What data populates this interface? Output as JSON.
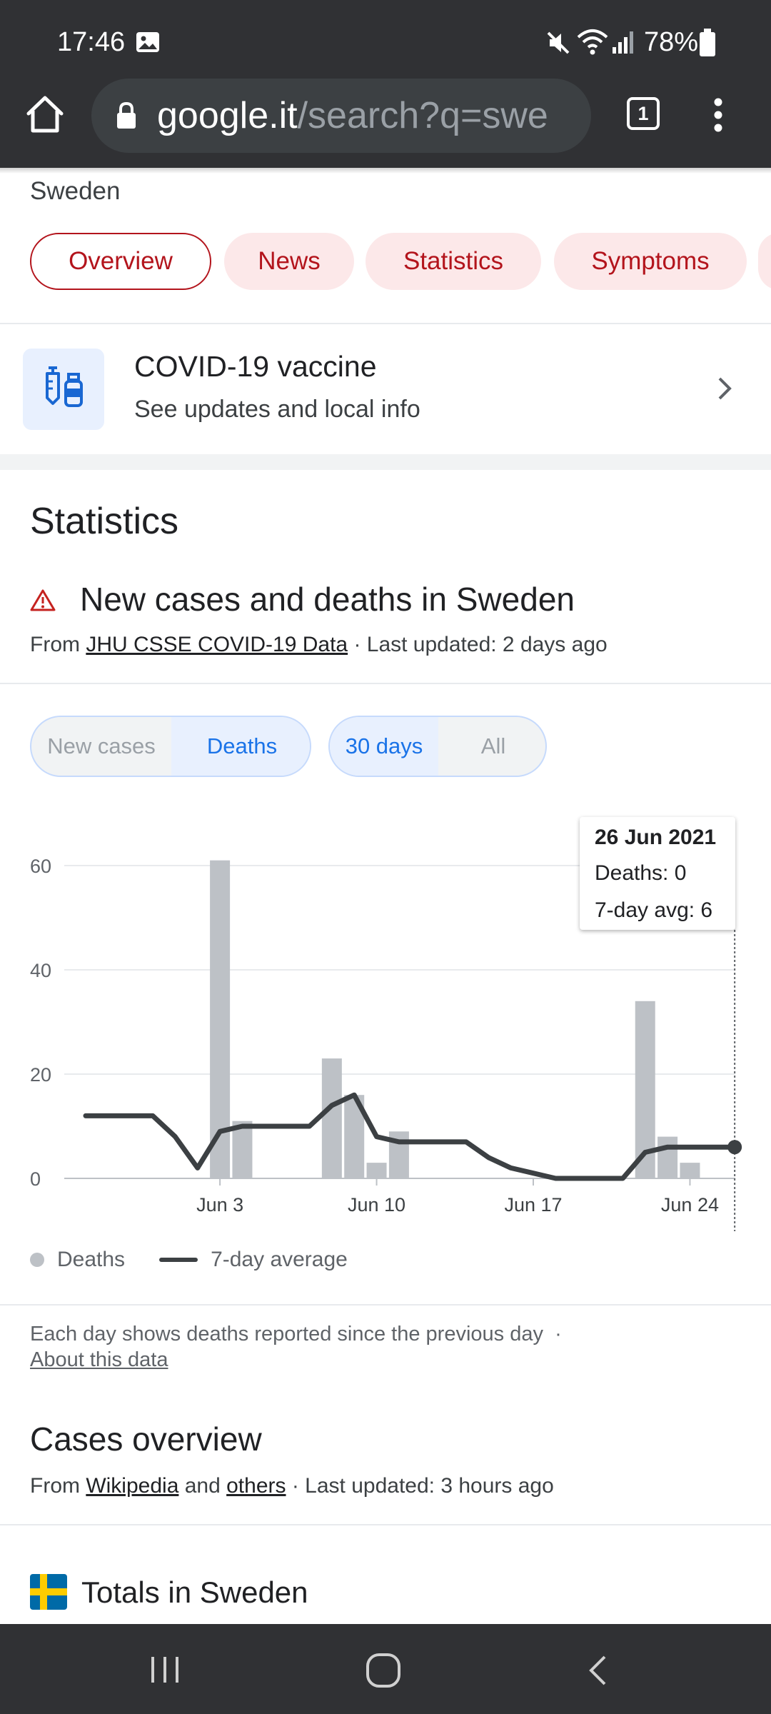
{
  "status_bar": {
    "time": "17:46",
    "battery": "78%"
  },
  "browser": {
    "url_host": "google.it",
    "url_path": "/search?q=swe",
    "tab_count": "1"
  },
  "search": {
    "country": "Sweden",
    "chips": [
      {
        "label": "Overview",
        "active": true
      },
      {
        "label": "News",
        "active": false
      },
      {
        "label": "Statistics",
        "active": false
      },
      {
        "label": "Symptoms",
        "active": false
      }
    ]
  },
  "vaccine_card": {
    "title": "COVID-19 vaccine",
    "subtitle": "See updates and local info"
  },
  "statistics": {
    "heading": "Statistics",
    "subheading": "New cases and deaths in Sweden",
    "source_prefix": "From ",
    "source_link": "JHU CSSE COVID-19 Data",
    "source_suffix": " · Last updated: 2 days ago",
    "toggle_metric": [
      "New cases",
      "Deaths"
    ],
    "toggle_range": [
      "30 days",
      "All"
    ],
    "tooltip": {
      "date": "26 Jun 2021",
      "deaths": "Deaths: 0",
      "avg": "7-day avg: 6"
    },
    "legend": {
      "bars": "Deaths",
      "line": "7-day average"
    },
    "footnote": "Each day shows deaths reported since the previous day",
    "footnote_sep": "·",
    "about_link": "About this data"
  },
  "chart_data": {
    "type": "bar",
    "title": "",
    "ylim": [
      0,
      60
    ],
    "yticks": [
      0,
      20,
      40,
      60
    ],
    "x_tick_labels": [
      "Jun 3",
      "Jun 10",
      "Jun 17",
      "Jun 24"
    ],
    "x_tick_days": [
      3,
      10,
      17,
      24
    ],
    "days": [
      28,
      29,
      30,
      31,
      1,
      2,
      3,
      4,
      5,
      6,
      7,
      8,
      9,
      10,
      11,
      12,
      13,
      14,
      15,
      16,
      17,
      18,
      19,
      20,
      21,
      22,
      23,
      24,
      25,
      26
    ],
    "series": [
      {
        "name": "Deaths",
        "values": [
          0,
          0,
          0,
          0,
          0,
          0,
          61,
          11,
          0,
          0,
          0,
          23,
          16,
          3,
          9,
          0,
          0,
          0,
          0,
          0,
          0,
          0,
          0,
          0,
          0,
          34,
          8,
          3,
          0,
          0
        ]
      },
      {
        "name": "7-day average",
        "values": [
          12,
          12,
          12,
          12,
          8,
          2,
          9,
          10,
          10,
          10,
          10,
          14,
          16,
          8,
          7,
          7,
          7,
          7,
          4,
          2,
          1,
          0,
          0,
          0,
          0,
          5,
          6,
          6,
          6,
          6
        ]
      }
    ],
    "grid": true,
    "colors": {
      "bar": "#bdc1c6",
      "line": "#3c4043"
    }
  },
  "cases_overview": {
    "heading": "Cases overview",
    "from": "From ",
    "link1": "Wikipedia",
    "and": " and ",
    "link2": "others",
    "suffix": " · Last updated: 3 hours ago"
  },
  "totals": {
    "title": "Totals in Sweden"
  }
}
